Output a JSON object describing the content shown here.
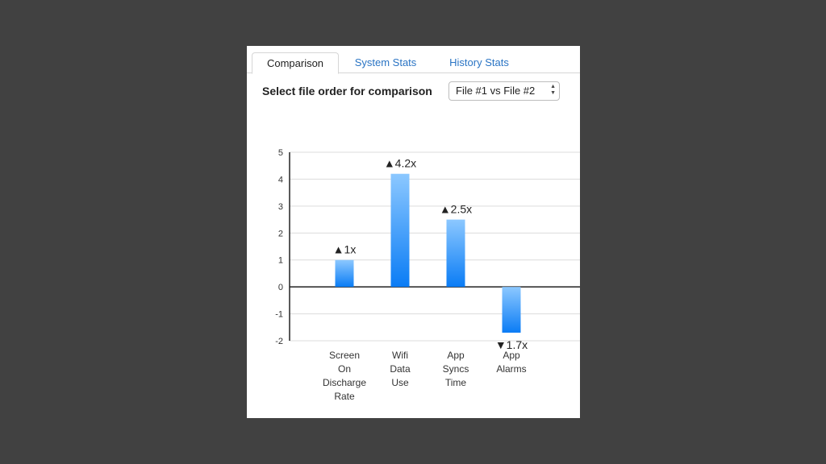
{
  "tabs": [
    {
      "label": "Comparison",
      "active": true
    },
    {
      "label": "System Stats",
      "active": false
    },
    {
      "label": "History Stats",
      "active": false
    }
  ],
  "selector": {
    "label": "Select file order for comparison",
    "value": "File #1 vs File #2",
    "arrows": "▲▼"
  },
  "colors": {
    "bar_top": "#8cc8ff",
    "bar_bottom": "#0a7cf5",
    "accent_tab": "#2a74c4"
  },
  "chart_data": {
    "type": "bar",
    "categories": [
      [
        "Screen",
        "On",
        "Discharge",
        "Rate"
      ],
      [
        "Wifi",
        "Data",
        "Use"
      ],
      [
        "App",
        "Syncs",
        "Time"
      ],
      [
        "App",
        "Alarms"
      ]
    ],
    "values": [
      1,
      4.2,
      2.5,
      -1.7
    ],
    "data_labels": [
      "▲1x",
      "▲4.2x",
      "▲2.5x",
      "▼1.7x"
    ],
    "ylim": [
      -2,
      5
    ],
    "yticks": [
      5,
      4,
      3,
      2,
      1,
      0,
      -1,
      -2
    ],
    "grid": true,
    "title": "",
    "xlabel": "",
    "ylabel": ""
  }
}
